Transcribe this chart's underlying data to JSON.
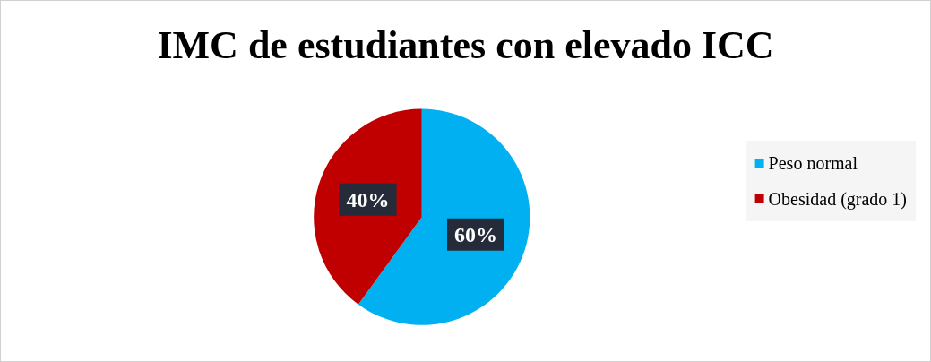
{
  "chart_data": {
    "type": "pie",
    "title": "IMC de estudiantes con elevado ICC",
    "categories": [
      "Peso normal",
      "Obesidad (grado 1)"
    ],
    "values": [
      60,
      40
    ],
    "colors": [
      "#00b0f0",
      "#c00000"
    ],
    "value_labels": [
      "60%",
      "40%"
    ],
    "legend": "right"
  }
}
